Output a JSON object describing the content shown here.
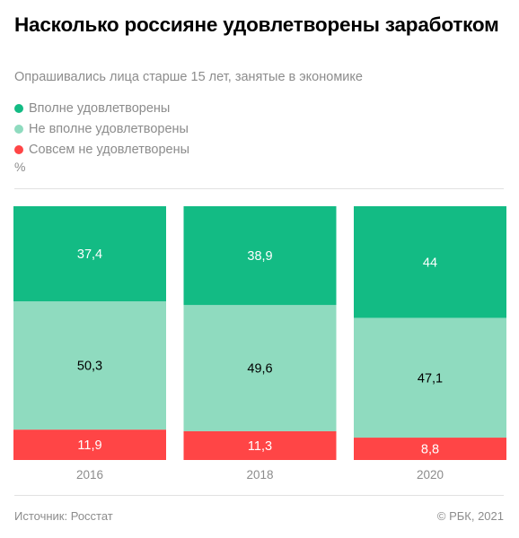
{
  "header": {
    "title": "Насколько россияне удовлетворены заработком",
    "subtitle": "Опрашивались лица старше 15 лет, занятые в экономике"
  },
  "legend": [
    {
      "label": "Вполне удовлетворены",
      "color": "#13bb84"
    },
    {
      "label": "Не вполне удовлетворены",
      "color": "#8fdbbf"
    },
    {
      "label": "Совсем не удовлетворены",
      "color": "#ff4546"
    }
  ],
  "unit": "%",
  "chart_data": {
    "type": "bar",
    "stacked": true,
    "normalized": true,
    "categories": [
      "2016",
      "2018",
      "2020"
    ],
    "series": [
      {
        "name": "Вполне удовлетворены",
        "color": "#13bb84",
        "label_color": "#ffffff",
        "values": [
          37.4,
          38.9,
          44
        ],
        "labels": [
          "37,4",
          "38,9",
          "44"
        ]
      },
      {
        "name": "Не вполне удовлетворены",
        "color": "#8fdbbf",
        "label_color": "#000000",
        "values": [
          50.3,
          49.6,
          47.1
        ],
        "labels": [
          "50,3",
          "49,6",
          "47,1"
        ]
      },
      {
        "name": "Совсем не удовлетворены",
        "color": "#ff4546",
        "label_color": "#ffffff",
        "values": [
          11.9,
          11.3,
          8.8
        ],
        "labels": [
          "11,9",
          "11,3",
          "8,8"
        ]
      }
    ],
    "ylabel": "%",
    "grid": false,
    "legend_position": "top-left"
  },
  "footer": {
    "source": "Источник: Росстат",
    "copyright": "© РБК, 2021"
  }
}
